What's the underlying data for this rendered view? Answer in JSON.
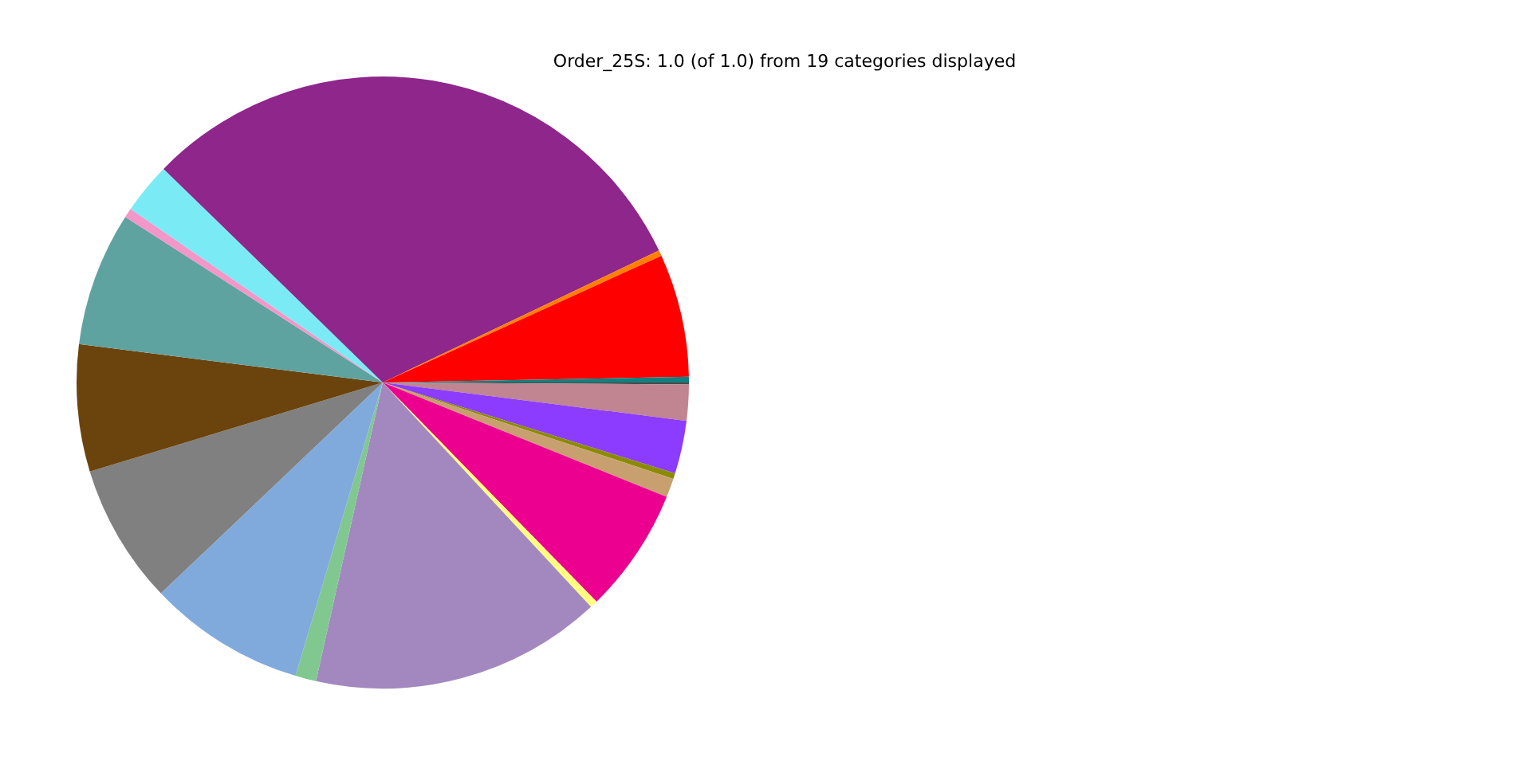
{
  "chart_data": {
    "type": "pie",
    "title": "Order_25S: 1.0 (of 1.0) from 19 categories displayed",
    "categories": [
      null,
      null,
      null,
      null,
      null,
      null,
      null,
      null,
      null,
      null,
      null,
      null,
      null,
      null,
      null,
      null,
      null,
      null,
      null
    ],
    "values": [
      0.1,
      1.9,
      2.8,
      0.3,
      1.0,
      6.6,
      0.4,
      15.4,
      1.1,
      8.3,
      7.4,
      6.7,
      7.1,
      0.5,
      2.7,
      30.6,
      0.3,
      6.5,
      0.3
    ],
    "colors": [
      "#4a4a4a",
      "#c08590",
      "#8c3cff",
      "#8b8b00",
      "#c8a070",
      "#ec0090",
      "#ffff80",
      "#a388bf",
      "#80c890",
      "#80aadc",
      "#808080",
      "#6b430c",
      "#5fa3a0",
      "#f396c8",
      "#7aebf4",
      "#8e268b",
      "#ff8000",
      "#ff0000",
      "#108080"
    ],
    "legend": false
  }
}
